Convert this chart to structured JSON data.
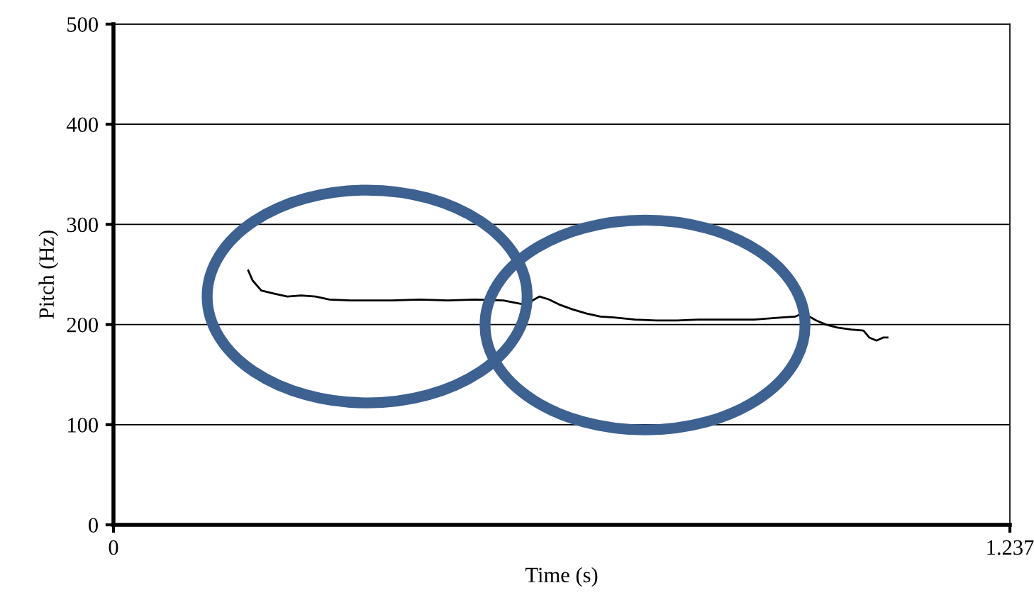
{
  "chart_data": {
    "type": "line",
    "xlabel": "Time (s)",
    "ylabel": "Pitch (Hz)",
    "xlim": [
      0,
      1.237
    ],
    "xticks": [
      0,
      1.237
    ],
    "ylim": [
      0,
      500
    ],
    "yticks": [
      0,
      100,
      200,
      300,
      400,
      500
    ],
    "grid": "y",
    "marker": "none",
    "line_style": "solid",
    "series": [
      {
        "color": "#000000",
        "x": [
          0.186,
          0.192,
          0.204,
          0.221,
          0.24,
          0.259,
          0.279,
          0.298,
          0.327,
          0.355,
          0.384,
          0.423,
          0.461,
          0.499,
          0.538,
          0.553,
          0.567,
          0.572,
          0.578,
          0.588,
          0.601,
          0.615,
          0.634,
          0.653,
          0.672,
          0.691,
          0.72,
          0.749,
          0.778,
          0.807,
          0.845,
          0.884,
          0.922,
          0.941,
          0.951,
          0.96,
          0.97,
          0.983,
          0.999,
          1.018,
          1.035,
          1.043,
          1.053,
          1.062,
          1.068
        ],
        "values": [
          254,
          244,
          234,
          231,
          228,
          229,
          228,
          225,
          224,
          224,
          224,
          225,
          224,
          225,
          224,
          222,
          220,
          218,
          224,
          228,
          225,
          220,
          215,
          211,
          208,
          207,
          205,
          204,
          204,
          205,
          205,
          205,
          207,
          208,
          211,
          208,
          204,
          200,
          197,
          195,
          194,
          187,
          184,
          187,
          187
        ]
      }
    ]
  }
}
